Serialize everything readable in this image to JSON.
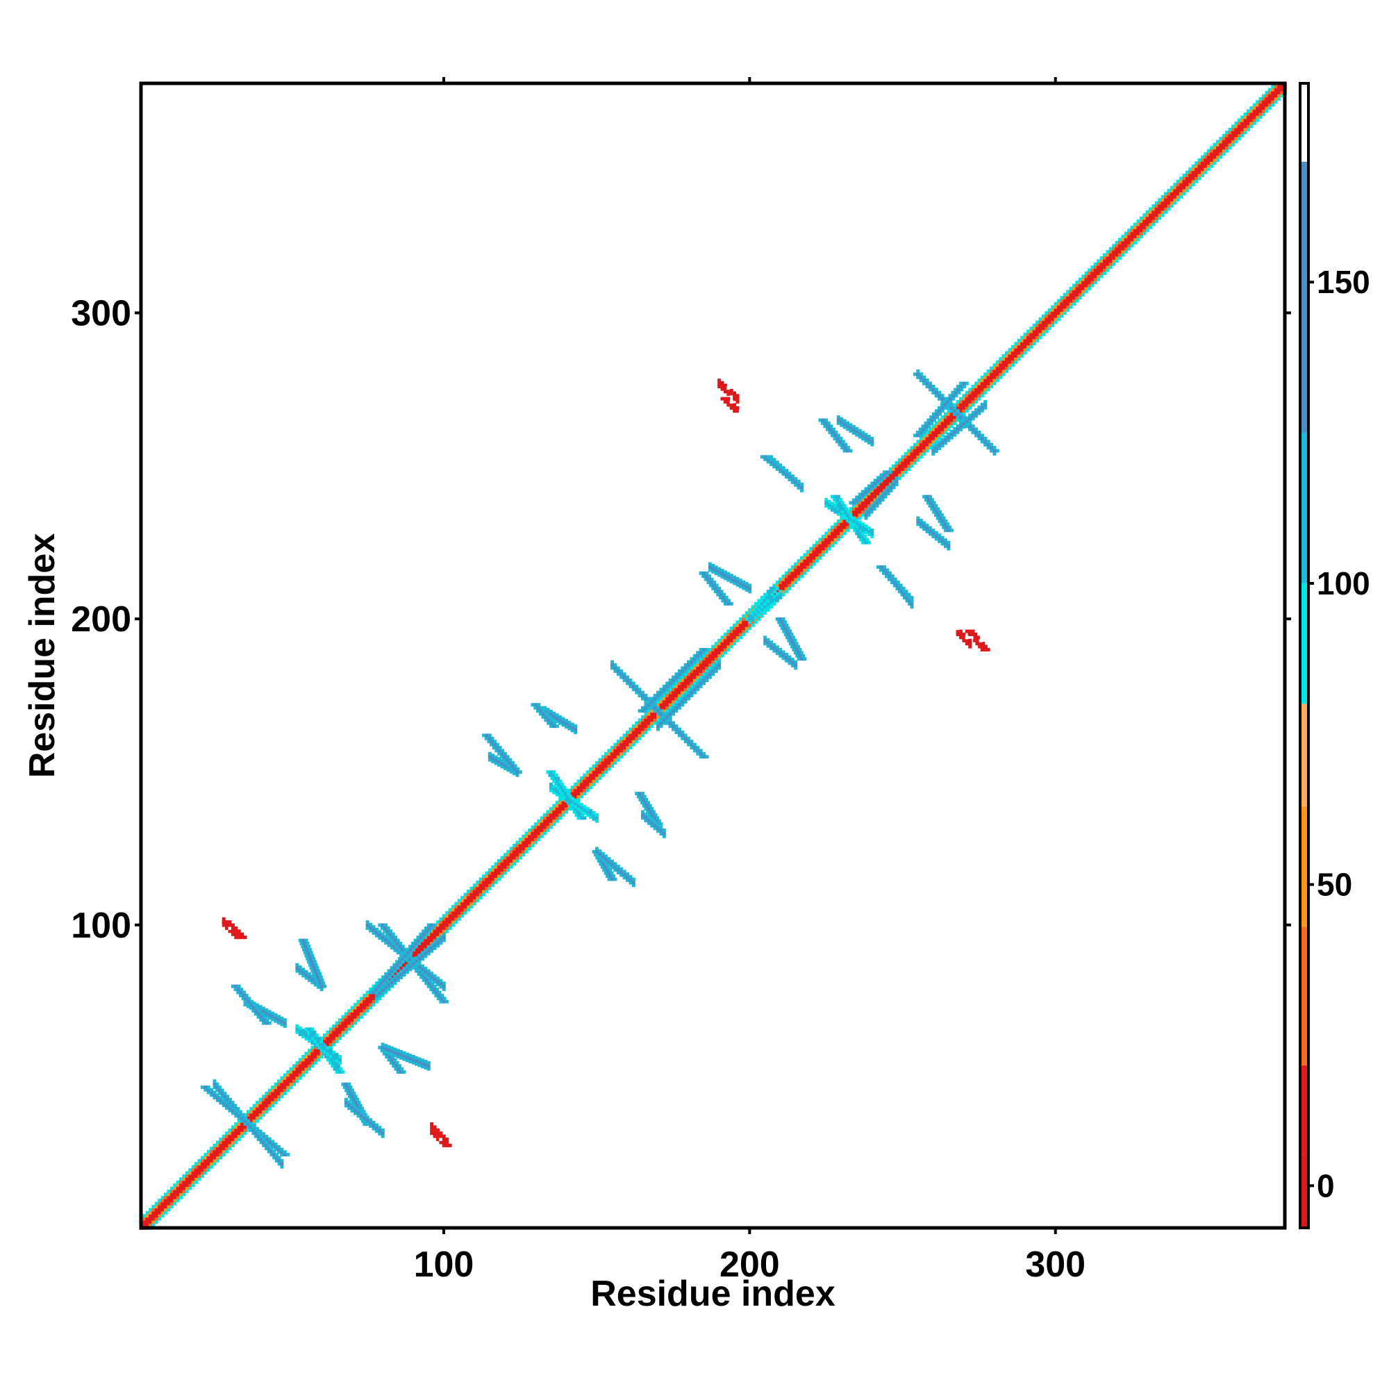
{
  "chart_data": {
    "type": "heatmap",
    "xlabel": "Residue index",
    "ylabel": "Residue index",
    "xlim": [
      1,
      375
    ],
    "ylim": [
      1,
      375
    ],
    "x_ticks": [
      100,
      200,
      300
    ],
    "y_ticks": [
      100,
      200,
      300
    ],
    "x_tick_labels": [
      "100",
      "200",
      "300"
    ],
    "y_tick_labels": [
      "100",
      "200",
      "300"
    ],
    "grid": false,
    "colorbar": {
      "placement": "right",
      "range": [
        -7,
        183
      ],
      "ticks": [
        0,
        50,
        100,
        150
      ],
      "tick_labels": [
        "0",
        "50",
        "100",
        "150"
      ],
      "bands": [
        {
          "from": -7,
          "to": 5,
          "color": "#d7191c"
        },
        {
          "from": 5,
          "to": 20,
          "color": "#e31a1c"
        },
        {
          "from": 20,
          "to": 43,
          "color": "#f46d22"
        },
        {
          "from": 43,
          "to": 63,
          "color": "#f8961e"
        },
        {
          "from": 63,
          "to": 80,
          "color": "#fdae61"
        },
        {
          "from": 80,
          "to": 100,
          "color": "#00e5e5"
        },
        {
          "from": 100,
          "to": 125,
          "color": "#1fb8d6"
        },
        {
          "from": 125,
          "to": 170,
          "color": "#4a8ec3"
        },
        {
          "from": 170,
          "to": 183,
          "color": "#ffffff"
        }
      ]
    },
    "diagonal": {
      "from": 1,
      "to": 375,
      "core_value": 5,
      "band_values": [
        30,
        90
      ]
    },
    "features": [
      {
        "x": [
          25,
          47
        ],
        "y": [
          48,
          22
        ],
        "value": 130
      },
      {
        "x": [
          35,
          48
        ],
        "y": [
          75,
          68
        ],
        "value": 130
      },
      {
        "x": [
          52,
          60
        ],
        "y": [
          86,
          80
        ],
        "value": 130
      },
      {
        "x": [
          52,
          66
        ],
        "y": [
          66,
          56
        ],
        "value": 110
      },
      {
        "x": [
          68,
          80
        ],
        "y": [
          42,
          32
        ],
        "value": 130
      },
      {
        "x": [
          80,
          95
        ],
        "y": [
          60,
          54
        ],
        "value": 130
      },
      {
        "x": [
          75,
          100
        ],
        "y": [
          100,
          80
        ],
        "value": 130
      },
      {
        "x": [
          78,
          100
        ],
        "y": [
          77,
          96
        ],
        "value": 130
      },
      {
        "x": [
          28,
          32
        ],
        "y": [
          101,
          97
        ],
        "value": 15
      },
      {
        "x": [
          96,
          101
        ],
        "y": [
          34,
          29
        ],
        "value": 15
      },
      {
        "x": [
          115,
          124
        ],
        "y": [
          155,
          150
        ],
        "value": 130
      },
      {
        "x": [
          133,
          143
        ],
        "y": [
          170,
          164
        ],
        "value": 130
      },
      {
        "x": [
          135,
          150
        ],
        "y": [
          145,
          135
        ],
        "value": 110
      },
      {
        "x": [
          150,
          162
        ],
        "y": [
          124,
          114
        ],
        "value": 130
      },
      {
        "x": [
          165,
          172
        ],
        "y": [
          136,
          130
        ],
        "value": 130
      },
      {
        "x": [
          155,
          175
        ],
        "y": [
          185,
          165
        ],
        "value": 130
      },
      {
        "x": [
          170,
          190
        ],
        "y": [
          165,
          185
        ],
        "value": 130
      },
      {
        "x": [
          187,
          200
        ],
        "y": [
          217,
          210
        ],
        "value": 130
      },
      {
        "x": [
          200,
          210
        ],
        "y": [
          200,
          208
        ],
        "value": 110
      },
      {
        "x": [
          205,
          215
        ],
        "y": [
          193,
          185
        ],
        "value": 130
      },
      {
        "x": [
          207,
          217
        ],
        "y": [
          252,
          243
        ],
        "value": 130
      },
      {
        "x": [
          225,
          240
        ],
        "y": [
          238,
          228
        ],
        "value": 110
      },
      {
        "x": [
          229,
          240
        ],
        "y": [
          265,
          258
        ],
        "value": 130
      },
      {
        "x": [
          238,
          248
        ],
        "y": [
          234,
          245
        ],
        "value": 130
      },
      {
        "x": [
          245,
          253
        ],
        "y": [
          215,
          205
        ],
        "value": 130
      },
      {
        "x": [
          255,
          265
        ],
        "y": [
          232,
          224
        ],
        "value": 130
      },
      {
        "x": [
          255,
          280
        ],
        "y": [
          280,
          255
        ],
        "value": 130
      },
      {
        "x": [
          260,
          277
        ],
        "y": [
          255,
          270
        ],
        "value": 130
      },
      {
        "x": [
          190,
          196
        ],
        "y": [
          277,
          272
        ],
        "value": 15
      },
      {
        "x": [
          268,
          272
        ],
        "y": [
          196,
          192
        ],
        "value": 15
      }
    ],
    "noise_seed": 7
  }
}
